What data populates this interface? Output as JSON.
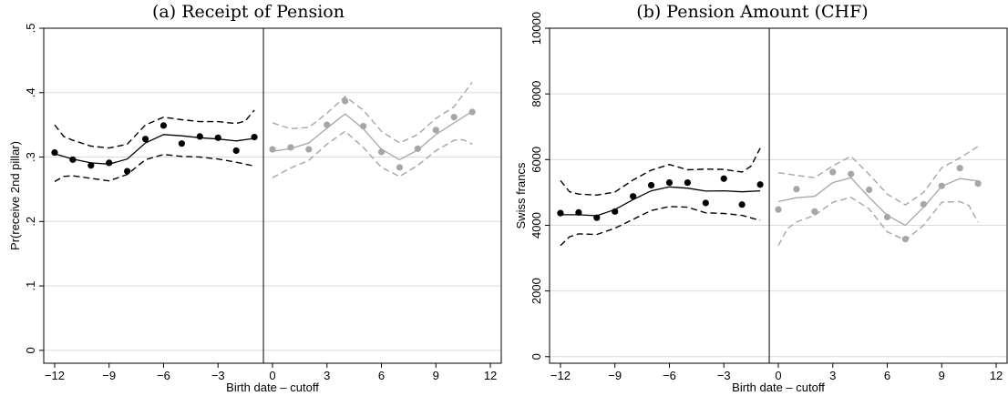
{
  "chart_data": [
    {
      "type": "scatter",
      "title": "(a) Receipt of Pension",
      "xlabel": "Birth date – cutoff",
      "ylabel": "Pr(receive 2nd pillar)",
      "xlim": [
        -12.6,
        12.6
      ],
      "ylim": [
        -0.02,
        0.5
      ],
      "xticks": [
        -12,
        -9,
        -6,
        -3,
        0,
        3,
        6,
        9,
        12
      ],
      "xtick_labels": [
        "−12",
        "−9",
        "−6",
        "−3",
        "0",
        "3",
        "6",
        "9",
        "12"
      ],
      "yticks": [
        0,
        0.1,
        0.2,
        0.3,
        0.4,
        0.5
      ],
      "ytick_labels": [
        "0",
        ".1",
        ".2",
        ".3",
        ".4",
        ".5"
      ],
      "cutoff": -0.5,
      "grid": true,
      "colors": {
        "left": "#000000",
        "right": "#a6a6a6"
      },
      "series": [
        {
          "side": "left",
          "points": {
            "x": [
              -12,
              -11,
              -10,
              -9,
              -8,
              -7,
              -6,
              -5,
              -4,
              -3,
              -2,
              -1
            ],
            "y": [
              0.307,
              0.296,
              0.287,
              0.291,
              0.278,
              0.328,
              0.349,
              0.321,
              0.332,
              0.33,
              0.31,
              0.331
            ]
          },
          "fit": {
            "x": [
              -12,
              -11,
              -10,
              -9,
              -8,
              -7,
              -6,
              -5,
              -4,
              -3,
              -2,
              -1
            ],
            "y": [
              0.305,
              0.297,
              0.291,
              0.289,
              0.297,
              0.322,
              0.335,
              0.333,
              0.33,
              0.328,
              0.325,
              0.329
            ]
          },
          "ci_upper": {
            "x": [
              -12,
              -11.5,
              -11,
              -10,
              -9,
              -8,
              -7,
              -6,
              -5,
              -4,
              -3,
              -2,
              -1.5,
              -1
            ],
            "y": [
              0.35,
              0.332,
              0.326,
              0.317,
              0.314,
              0.32,
              0.35,
              0.362,
              0.358,
              0.355,
              0.355,
              0.352,
              0.356,
              0.373
            ]
          },
          "ci_lower": {
            "x": [
              -12,
              -11.5,
              -11,
              -10,
              -9,
              -8,
              -7,
              -6,
              -5,
              -4,
              -3,
              -2,
              -1
            ],
            "y": [
              0.262,
              0.27,
              0.271,
              0.267,
              0.263,
              0.273,
              0.296,
              0.304,
              0.301,
              0.3,
              0.297,
              0.292,
              0.286
            ]
          }
        },
        {
          "side": "right",
          "points": {
            "x": [
              0,
              1,
              2,
              3,
              4,
              5,
              6,
              7,
              8,
              9,
              10,
              11
            ],
            "y": [
              0.312,
              0.315,
              0.312,
              0.35,
              0.387,
              0.348,
              0.308,
              0.284,
              0.313,
              0.342,
              0.362,
              0.37
            ]
          },
          "fit": {
            "x": [
              0,
              1,
              2,
              3,
              4,
              5,
              6,
              7,
              8,
              9,
              10,
              11
            ],
            "y": [
              0.309,
              0.313,
              0.322,
              0.345,
              0.367,
              0.344,
              0.312,
              0.296,
              0.311,
              0.335,
              0.353,
              0.371
            ]
          },
          "ci_upper": {
            "x": [
              0,
              1,
              2,
              3,
              4,
              5,
              6,
              7,
              8,
              9,
              10,
              11
            ],
            "y": [
              0.353,
              0.344,
              0.346,
              0.368,
              0.394,
              0.373,
              0.34,
              0.322,
              0.335,
              0.36,
              0.378,
              0.416
            ]
          },
          "ci_lower": {
            "x": [
              0,
              1,
              2,
              3,
              4,
              5,
              6,
              7,
              8,
              9,
              10,
              10.5,
              11
            ],
            "y": [
              0.268,
              0.283,
              0.295,
              0.32,
              0.34,
              0.315,
              0.284,
              0.27,
              0.287,
              0.31,
              0.326,
              0.327,
              0.32
            ]
          }
        }
      ]
    },
    {
      "type": "scatter",
      "title": "(b) Pension Amount (CHF)",
      "xlabel": "Birth date – cutoff",
      "ylabel": "Swiss francs",
      "xlim": [
        -12.6,
        12.6
      ],
      "ylim": [
        -200,
        10000
      ],
      "xticks": [
        -12,
        -9,
        -6,
        -3,
        0,
        3,
        6,
        9,
        12
      ],
      "xtick_labels": [
        "−12",
        "−9",
        "−6",
        "−3",
        "0",
        "3",
        "6",
        "9",
        "12"
      ],
      "yticks": [
        0,
        2000,
        4000,
        6000,
        8000,
        10000
      ],
      "ytick_labels": [
        "0",
        "2000",
        "4000",
        "6000",
        "8000",
        "10000"
      ],
      "cutoff": -0.5,
      "grid": true,
      "colors": {
        "left": "#000000",
        "right": "#a6a6a6"
      },
      "series": [
        {
          "side": "left",
          "points": {
            "x": [
              -12,
              -11,
              -10,
              -9,
              -8,
              -7,
              -6,
              -5,
              -4,
              -3,
              -2,
              -1
            ],
            "y": [
              4370,
              4390,
              4230,
              4420,
              4880,
              5220,
              5300,
              5300,
              4680,
              5420,
              4630,
              5240
            ]
          },
          "fit": {
            "x": [
              -12,
              -11,
              -10,
              -9,
              -8,
              -7,
              -6,
              -5,
              -4,
              -3,
              -2,
              -1
            ],
            "y": [
              4320,
              4320,
              4290,
              4480,
              4780,
              5050,
              5170,
              5130,
              5040,
              5050,
              5020,
              5050
            ]
          },
          "ci_upper": {
            "x": [
              -12,
              -11.5,
              -11,
              -10,
              -9,
              -8,
              -7,
              -6,
              -5,
              -4,
              -3,
              -2,
              -1.5,
              -1
            ],
            "y": [
              5360,
              5020,
              4950,
              4920,
              5010,
              5380,
              5680,
              5850,
              5690,
              5710,
              5700,
              5620,
              5800,
              6350
            ]
          },
          "ci_lower": {
            "x": [
              -12,
              -11.5,
              -11,
              -10,
              -9,
              -8,
              -7,
              -6,
              -5,
              -4,
              -3,
              -2,
              -1
            ],
            "y": [
              3380,
              3650,
              3740,
              3720,
              3910,
              4180,
              4450,
              4570,
              4550,
              4380,
              4360,
              4300,
              4150
            ]
          }
        },
        {
          "side": "right",
          "points": {
            "x": [
              0,
              1,
              2,
              3,
              4,
              5,
              6,
              7,
              8,
              9,
              10,
              11
            ],
            "y": [
              4480,
              5100,
              4420,
              5620,
              5560,
              5080,
              4250,
              3580,
              4640,
              5200,
              5740,
              5270
            ]
          },
          "fit": {
            "x": [
              0,
              1,
              2,
              3,
              4,
              5,
              6,
              7,
              8,
              9,
              10,
              11
            ],
            "y": [
              4720,
              4840,
              4880,
              5300,
              5450,
              4850,
              4300,
              4000,
              4550,
              5190,
              5420,
              5350
            ]
          },
          "ci_upper": {
            "x": [
              0,
              1,
              2,
              3,
              4,
              5,
              6,
              7,
              8,
              9,
              10,
              11
            ],
            "y": [
              5600,
              5520,
              5450,
              5810,
              6100,
              5550,
              4950,
              4620,
              5000,
              5750,
              6050,
              6400
            ]
          },
          "ci_lower": {
            "x": [
              0,
              0.5,
              1,
              2,
              3,
              4,
              5,
              6,
              7,
              8,
              9,
              10,
              10.5,
              11
            ],
            "y": [
              3380,
              3900,
              4100,
              4300,
              4700,
              4850,
              4500,
              3800,
              3550,
              4000,
              4700,
              4720,
              4600,
              4100
            ]
          }
        }
      ]
    }
  ]
}
